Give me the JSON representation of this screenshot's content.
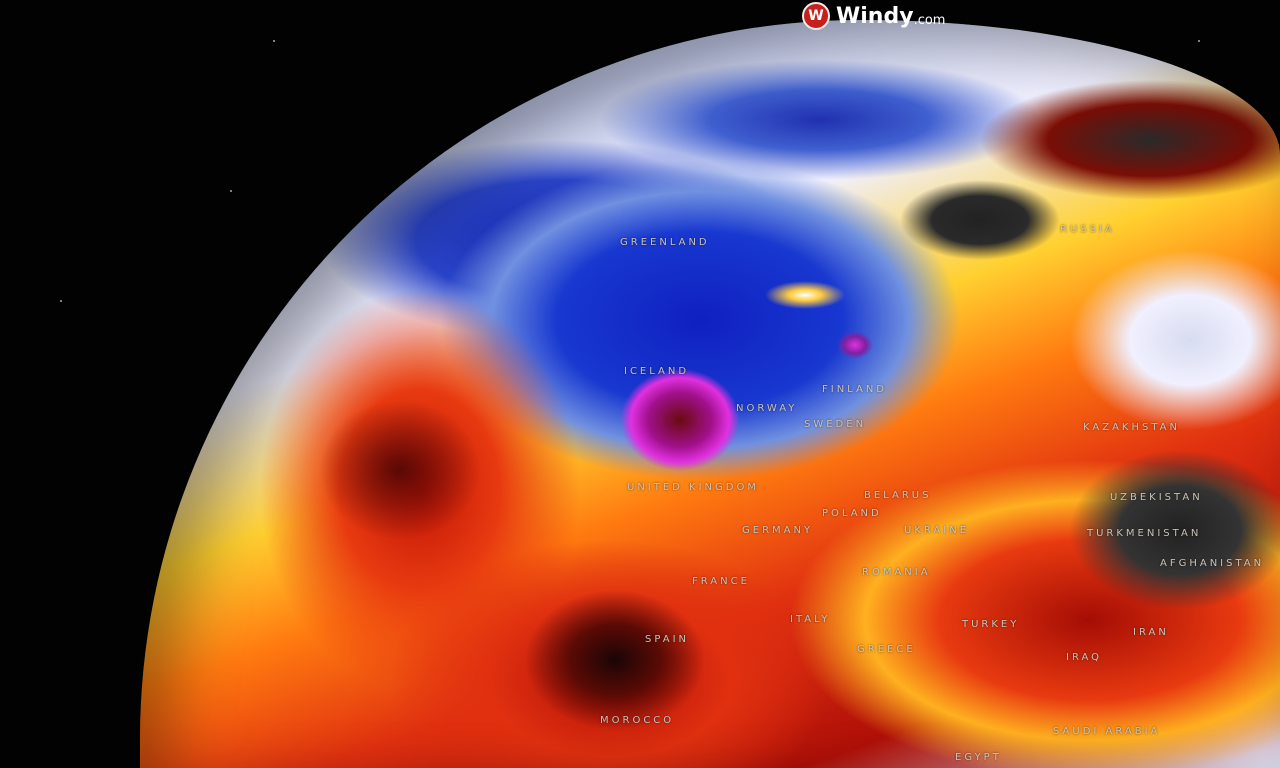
{
  "brand": {
    "name": "Windy",
    "suffix": ".com",
    "icon": "windy-logo-icon",
    "accent": "#c8201c"
  },
  "labels": {
    "greenland": "GREENLAND",
    "russia": "RUSSIA",
    "iceland": "ICELAND",
    "finland": "FINLAND",
    "norway": "NORWAY",
    "sweden": "SWEDEN",
    "united_kingdom": "UNITED KINGDOM",
    "belarus": "BELARUS",
    "poland": "POLAND",
    "germany": "GERMANY",
    "ukraine": "UKRAINE",
    "kazakhstan": "KAZAKHSTAN",
    "uzbekistan": "UZBEKISTAN",
    "turkmenistan": "TURKMENISTAN",
    "afghanistan": "AFGHANISTAN",
    "france": "FRANCE",
    "romania": "ROMANIA",
    "spain": "SPAIN",
    "italy": "ITALY",
    "greece": "GREECE",
    "turkey": "TURKEY",
    "iraq": "IRAQ",
    "iran": "IRAN",
    "morocco": "MOROCCO",
    "saudi_arabia": "SAUDI ARABIA",
    "egypt": "EGYPT"
  }
}
